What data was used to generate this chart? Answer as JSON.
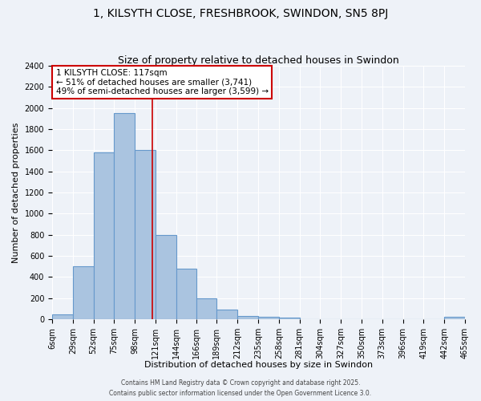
{
  "title": "1, KILSYTH CLOSE, FRESHBROOK, SWINDON, SN5 8PJ",
  "subtitle": "Size of property relative to detached houses in Swindon",
  "xlabel": "Distribution of detached houses by size in Swindon",
  "ylabel": "Number of detached properties",
  "bin_edges": [
    6,
    29,
    52,
    75,
    98,
    121,
    144,
    166,
    189,
    212,
    235,
    258,
    281,
    304,
    327,
    350,
    373,
    396,
    419,
    442,
    465
  ],
  "bar_heights": [
    50,
    500,
    1580,
    1950,
    1600,
    800,
    480,
    200,
    90,
    35,
    20,
    15,
    0,
    0,
    0,
    0,
    0,
    0,
    0,
    25
  ],
  "bar_color": "#aac4e0",
  "bar_edgecolor": "#6699cc",
  "bar_linewidth": 0.8,
  "vline_x": 117,
  "vline_color": "#cc0000",
  "vline_linewidth": 1.2,
  "annotation_text": "1 KILSYTH CLOSE: 117sqm\n← 51% of detached houses are smaller (3,741)\n49% of semi-detached houses are larger (3,599) →",
  "annotation_box_edgecolor": "#cc0000",
  "annotation_box_facecolor": "white",
  "ylim": [
    0,
    2400
  ],
  "xlim": [
    6,
    465
  ],
  "yticks": [
    0,
    200,
    400,
    600,
    800,
    1000,
    1200,
    1400,
    1600,
    1800,
    2000,
    2200,
    2400
  ],
  "bg_color": "#eef2f8",
  "grid_color": "white",
  "footer_line1": "Contains HM Land Registry data © Crown copyright and database right 2025.",
  "footer_line2": "Contains public sector information licensed under the Open Government Licence 3.0.",
  "title_fontsize": 10,
  "subtitle_fontsize": 9,
  "tick_label_fontsize": 7,
  "ylabel_fontsize": 8,
  "xlabel_fontsize": 8,
  "annotation_fontsize": 7.5
}
